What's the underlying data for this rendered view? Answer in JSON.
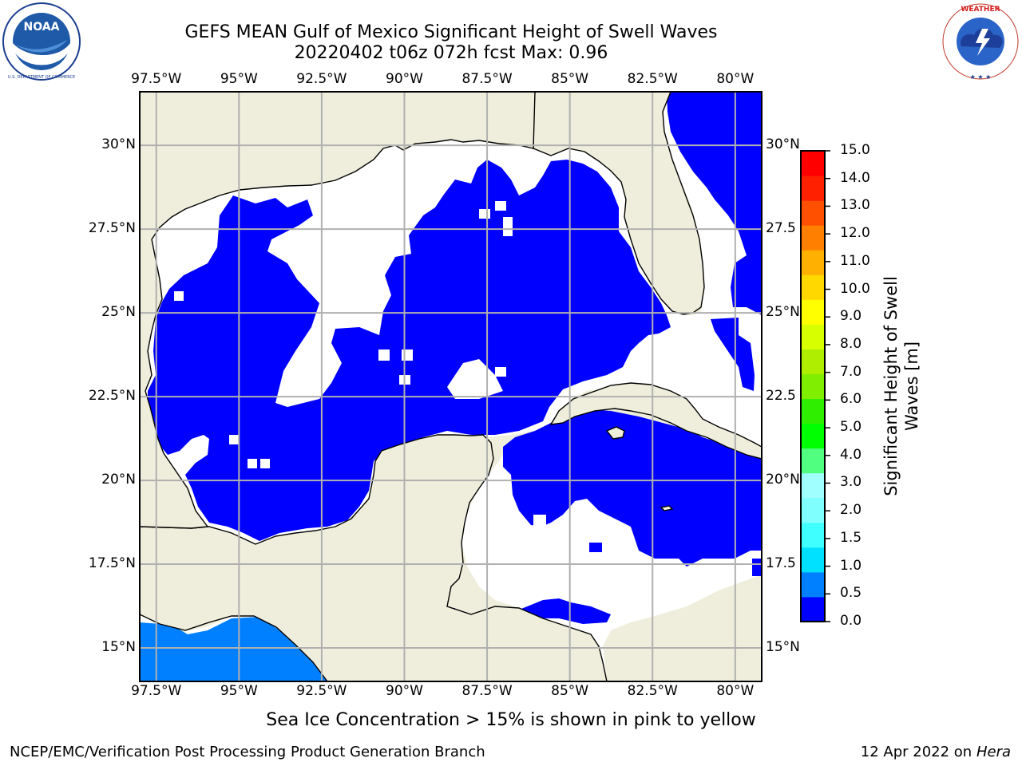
{
  "title": {
    "line1": "GEFS MEAN Gulf of Mexico Significant Height of Swell Waves",
    "line2": "20220402 t06z 072h fcst   Max: 0.96"
  },
  "logos": {
    "left": {
      "name": "NOAA",
      "ring_text": "NATIONAL OCEANIC AND ATMOSPHERIC ADMINISTRATION",
      "bottom_text": "U.S. DEPARTMENT OF COMMERCE"
    },
    "right": {
      "name": "NATIONAL WEATHER SERVICE"
    }
  },
  "map": {
    "lon_ticks": [
      "97.5°W",
      "95°W",
      "92.5°W",
      "90°W",
      "87.5°W",
      "85°W",
      "82.5°W",
      "80°W"
    ],
    "lat_ticks": [
      "30°N",
      "27.5°N",
      "25°N",
      "22.5°N",
      "20°N",
      "17.5°N",
      "15°N"
    ],
    "lat_ticks_right": [
      "30°N",
      "27.5",
      "25°N",
      "22.5",
      "20°N",
      "17.5",
      "15°N"
    ],
    "lon_range": [
      -98,
      -79.2
    ],
    "lat_range": [
      14,
      31.6
    ],
    "gridlines": true,
    "colors": {
      "land": "#efeedc",
      "ocean_no_data": "#ffffff",
      "band_0_0_5": "#0000ff",
      "band_0_5_1_0": "#0080ff",
      "grid": "#b0b0b0"
    }
  },
  "colorbar": {
    "label": "Significant Height of Swell Waves [m]",
    "label_line1": "Significant Height of Swell",
    "label_line2": "Waves [m]",
    "ticks": [
      "15.0",
      "14.0",
      "13.0",
      "12.0",
      "11.0",
      "10.0",
      "9.0",
      "8.0",
      "7.0",
      "6.0",
      "5.0",
      "4.0",
      "3.0",
      "2.0",
      "1.5",
      "1.0",
      "0.5",
      "0.0"
    ],
    "colors_bottom_to_top": [
      "#0000ff",
      "#0080ff",
      "#00e0ff",
      "#40ffff",
      "#80ffff",
      "#a0ffff",
      "#50ff80",
      "#00ff00",
      "#30ee00",
      "#80ee00",
      "#b0ee00",
      "#d8ff00",
      "#ffff00",
      "#ffd800",
      "#ffb000",
      "#ff8000",
      "#ff5000",
      "#ff2000",
      "#ff0000"
    ]
  },
  "note": "Sea Ice Concentration > 15% is shown in pink to yellow",
  "credit_left": "NCEP/EMC/Verification Post Processing Product Generation Branch",
  "credit_right_date": "12 Apr 2022 on ",
  "credit_right_host": "Hera"
}
